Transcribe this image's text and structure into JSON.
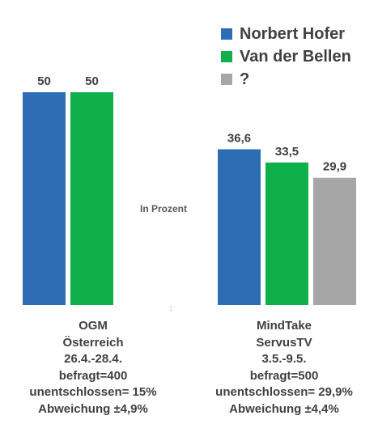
{
  "chart_data": {
    "type": "bar",
    "unit_label": "In Prozent",
    "footnote_mark": ":",
    "series": [
      {
        "name": "Norbert Hofer",
        "color": "#2E6DB4"
      },
      {
        "name": "Van der Bellen",
        "color": "#0FB04A"
      },
      {
        "name": "?",
        "color": "#A6A6A6"
      }
    ],
    "groups": [
      {
        "caption": [
          "OGM",
          "Österreich",
          "26.4.-28.4.",
          "befragt=400",
          "unentschlossen= 15%",
          "Abweichung ±4,9%"
        ],
        "bars": [
          {
            "series": 0,
            "value": 50,
            "label": "50"
          },
          {
            "series": 1,
            "value": 50,
            "label": "50"
          }
        ]
      },
      {
        "caption": [
          "MindTake",
          "ServusTV",
          "3.5.-9.5.",
          "befragt=500",
          "unentschlossen= 29,9%",
          "Abweichung ±4,4%"
        ],
        "bars": [
          {
            "series": 0,
            "value": 36.6,
            "label": "36,6"
          },
          {
            "series": 1,
            "value": 33.5,
            "label": "33,5"
          },
          {
            "series": 2,
            "value": 29.9,
            "label": "29,9"
          }
        ]
      }
    ],
    "ylim": [
      0,
      50
    ],
    "grid": false,
    "legend_position": "top-right"
  }
}
